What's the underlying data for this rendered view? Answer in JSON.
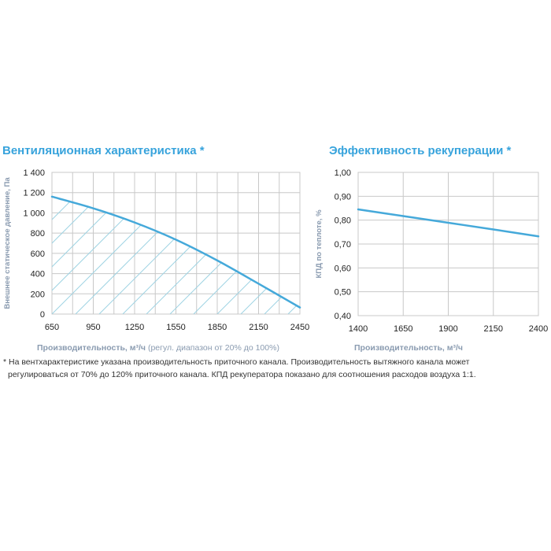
{
  "chart_data": [
    {
      "type": "line",
      "title": "Вентиляционная характеристика *",
      "xlabel": "Производительность, м³/ч",
      "xlabel_note": "(регул. диапазон от 20% до 100%)",
      "ylabel": "Внешнее статическое давление, Па",
      "x_ticks": [
        650,
        950,
        1250,
        1550,
        1850,
        2150,
        2450
      ],
      "x_tick_labels": [
        "650",
        "950",
        "1250",
        "1550",
        "1850",
        "2150",
        "2450"
      ],
      "y_ticks": [
        0,
        200,
        400,
        600,
        800,
        1000,
        1200,
        1400
      ],
      "y_tick_labels": [
        "0",
        "200",
        "400",
        "600",
        "800",
        "1 000",
        "1 200",
        "1 400"
      ],
      "xlim": [
        650,
        2450
      ],
      "ylim": [
        0,
        1400
      ],
      "grid": true,
      "hatched_area": true,
      "series": [
        {
          "name": "Вентиляционная характеристика",
          "x": [
            650,
            950,
            1250,
            1550,
            1850,
            2150,
            2450
          ],
          "y": [
            1160,
            1045,
            905,
            735,
            530,
            300,
            65
          ]
        }
      ]
    },
    {
      "type": "line",
      "title": "Эффективность рекуперации *",
      "xlabel": "Производительность, м³/ч",
      "ylabel": "КПД по теплоте, %",
      "x_ticks": [
        1400,
        1650,
        1900,
        2150,
        2400
      ],
      "x_tick_labels": [
        "1400",
        "1650",
        "1900",
        "2150",
        "2400"
      ],
      "y_ticks": [
        0.4,
        0.5,
        0.6,
        0.7,
        0.8,
        0.9,
        1.0
      ],
      "y_tick_labels": [
        "0,40",
        "0,50",
        "0,60",
        "0,70",
        "0,80",
        "0,90",
        "1,00"
      ],
      "xlim": [
        1400,
        2400
      ],
      "ylim": [
        0.4,
        1.0
      ],
      "grid": true,
      "series": [
        {
          "name": "КПД по теплоте",
          "x": [
            1400,
            1650,
            1900,
            2150,
            2400
          ],
          "y": [
            0.845,
            0.817,
            0.789,
            0.761,
            0.732
          ]
        }
      ]
    }
  ],
  "footnote": {
    "line1": "* На вентхарактеристике указана производительность приточного канала. Производительность вытяжного канала может",
    "line2": "регулироваться от 70% до 120% приточного канала. КПД рекуператора показано для соотношения расходов воздуха 1:1."
  },
  "colors": {
    "title": "#37a3dc",
    "curve": "#45a9da",
    "hatch": "#9fd3e3",
    "grid": "#c8c8c8",
    "axis_label": "#8a9bb0"
  }
}
